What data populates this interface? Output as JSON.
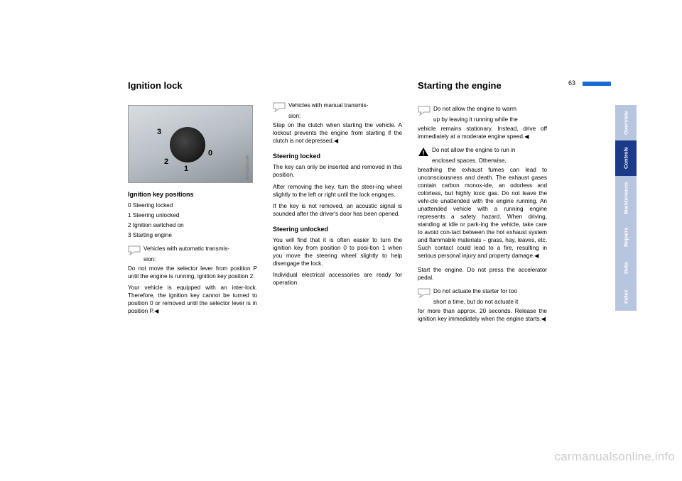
{
  "page_number": "63",
  "col1": {
    "heading": "Ignition lock",
    "image": {
      "labels": {
        "n0": "0",
        "n1": "1",
        "n2": "2",
        "n3": "3"
      },
      "code": "MV013006CMA"
    },
    "sub1": "Ignition key positions",
    "keylist": [
      "0  Steering locked",
      "1  Steering unlocked",
      "2  Ignition switched on",
      "3  Starting engine"
    ],
    "note1_line1": "Vehicles with automatic transmis-",
    "note1_line2": "sion:",
    "note1_body": "Do not move the selector lever from position P until the engine is running, ignition key position 2.",
    "note1_body2": "Your vehicle is equipped with an inter-lock. Therefore, the ignition key cannot be turned to position 0 or removed until the selector lever is in position P.◀"
  },
  "col2": {
    "note1_line1": "Vehicles with manual transmis-",
    "note1_line2": "sion:",
    "note1_body": "Step on the clutch when starting the vehicle. A lockout prevents the engine from starting if the clutch is not depressed.◀",
    "sub1": "Steering locked",
    "p1": "The key can only be inserted and removed in this position.",
    "p2": "After removing the key, turn the steer-ing wheel slightly to the left or right until the lock engages.",
    "p3": "If the key is not removed, an acoustic signal is sounded after the driver's door has been opened.",
    "sub2": "Steering unlocked",
    "p4": "You will find that it is often easier to turn the ignition key from position 0 to posi-tion 1 when you move the steering wheel slightly to help disengage the lock.",
    "p5": "Individual electrical accessories are ready for operation."
  },
  "col3": {
    "heading": "Starting the engine",
    "note1_line1": "Do not allow the engine to warm",
    "note1_line2": "up by leaving it running while the",
    "note1_body": "vehicle remains stationary. Instead, drive off immediately at a moderate engine speed.◀",
    "warn_line1": "Do not allow the engine to run in",
    "warn_line2": "enclosed spaces. Otherwise,",
    "warn_body": "breathing the exhaust fumes can lead to unconsciousness and death. The exhaust gases contain carbon monox-ide, an odorless and colorless, but highly toxic gas. Do not leave the vehi-cle unattended with the engine running. An unattended vehicle with a running engine represents a safety hazard. When driving, standing at idle or park-ing the vehicle, take care to avoid con-tact between the hot exhaust system and flammable materials – grass, hay, leaves, etc. Such contact could lead to a fire, resulting in serious personal injury and property damage.◀",
    "p1": "Start the engine. Do not press the accelerator pedal.",
    "note2_line1": "Do not actuate the starter for too",
    "note2_line2": "short a time, but do not actuate it",
    "note2_body": "for more than approx. 20 seconds. Release the ignition key immediately when the engine starts.◀"
  },
  "tabs": [
    {
      "label": "Overview",
      "style": "light",
      "height": 50
    },
    {
      "label": "Controls",
      "style": "dark",
      "height": 50
    },
    {
      "label": "Maintenance",
      "style": "light",
      "height": 62
    },
    {
      "label": "Repairs",
      "style": "light",
      "height": 48
    },
    {
      "label": "Data",
      "style": "light",
      "height": 40
    },
    {
      "label": "Index",
      "style": "light",
      "height": 40
    }
  ],
  "watermark": "carmanualsonline.info",
  "colors": {
    "tab_light": "#b8c5df",
    "tab_dark": "#1a3a8a",
    "bluebar": "#1a6bd6"
  }
}
